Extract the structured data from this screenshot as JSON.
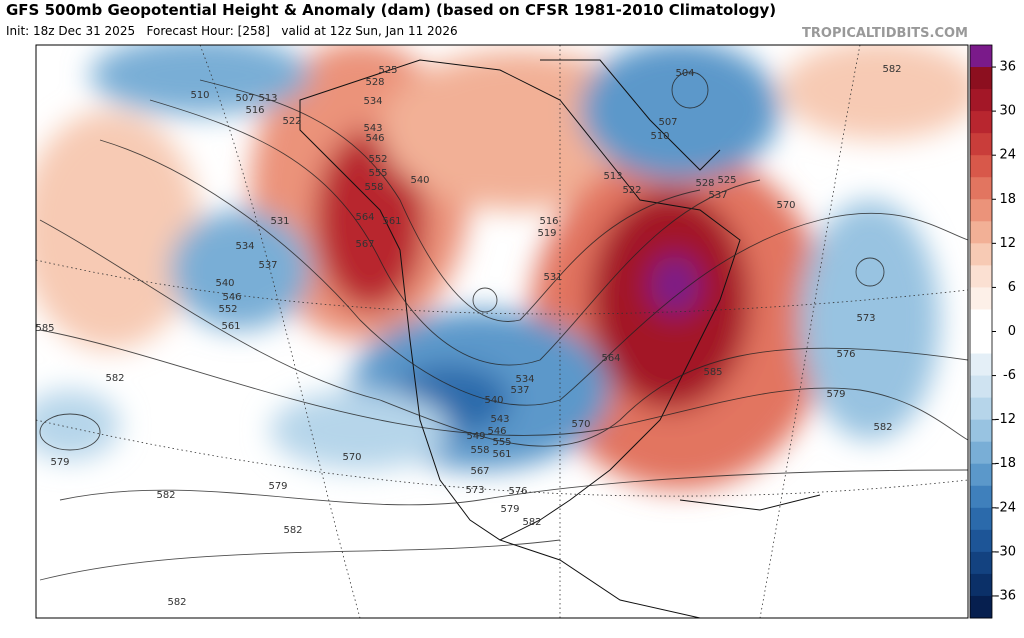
{
  "header": {
    "title": "GFS 500mb Geopotential Height & Anomaly (dam) (based on CFSR 1981-2010 Climatology)",
    "subtitle": "Init: 18z Dec 31 2025   Forecast Hour: [258]   valid at 12z Sun, Jan 11 2026",
    "credit": "TROPICALTIDBITS.COM"
  },
  "colorbar": {
    "range": [
      -39,
      39
    ],
    "ticks": [
      36,
      30,
      24,
      18,
      12,
      6,
      0,
      -6,
      -12,
      -18,
      -24,
      -30,
      -36
    ],
    "colors": [
      "#7a1a8a",
      "#8c0f1f",
      "#a31727",
      "#b8262f",
      "#c93d3a",
      "#d8584a",
      "#e27560",
      "#eb937a",
      "#f2b096",
      "#f7cab4",
      "#fbe0d2",
      "#fdf0e8",
      "#ffffff",
      "#ffffff",
      "#e4eff7",
      "#cfe3f1",
      "#b6d5ea",
      "#98c3e1",
      "#79aed6",
      "#5b98ca",
      "#3f80bc",
      "#2b6aab",
      "#1d5597",
      "#134280",
      "#0b3068",
      "#061f4f"
    ]
  },
  "map": {
    "contour_labels": [
      510,
      507,
      513,
      516,
      522,
      525,
      528,
      534,
      543,
      546,
      552,
      555,
      558,
      564,
      561,
      567,
      540,
      531,
      534,
      537,
      540,
      546,
      552,
      561,
      585,
      582,
      579,
      570,
      579,
      582,
      582,
      582,
      573,
      576,
      579,
      582,
      567,
      558,
      561,
      549,
      546,
      555,
      543,
      540,
      537,
      534,
      570,
      564,
      585,
      531,
      516,
      519,
      513,
      522,
      528,
      525,
      537,
      504,
      507,
      510,
      570,
      582,
      573,
      576,
      579,
      582
    ]
  }
}
